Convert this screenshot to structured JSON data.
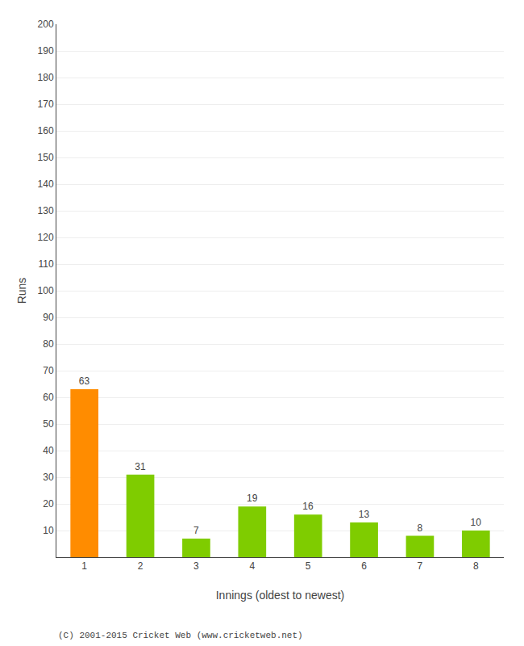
{
  "chart_data": {
    "type": "bar",
    "categories": [
      "1",
      "2",
      "3",
      "4",
      "5",
      "6",
      "7",
      "8"
    ],
    "values": [
      63,
      31,
      7,
      19,
      16,
      13,
      8,
      10
    ],
    "colors": [
      "#FF8C00",
      "#7FCC00",
      "#7FCC00",
      "#7FCC00",
      "#7FCC00",
      "#7FCC00",
      "#7FCC00",
      "#7FCC00"
    ],
    "xlabel": "Innings (oldest to newest)",
    "ylabel": "Runs",
    "ylim": [
      0,
      200
    ],
    "yticks": [
      10,
      20,
      30,
      40,
      50,
      60,
      70,
      80,
      90,
      100,
      110,
      120,
      130,
      140,
      150,
      160,
      170,
      180,
      190,
      200
    ],
    "grid": true,
    "data_labels": true,
    "annotations": [
      "(C) 2001-2015 Cricket Web (www.cricketweb.net)"
    ]
  }
}
